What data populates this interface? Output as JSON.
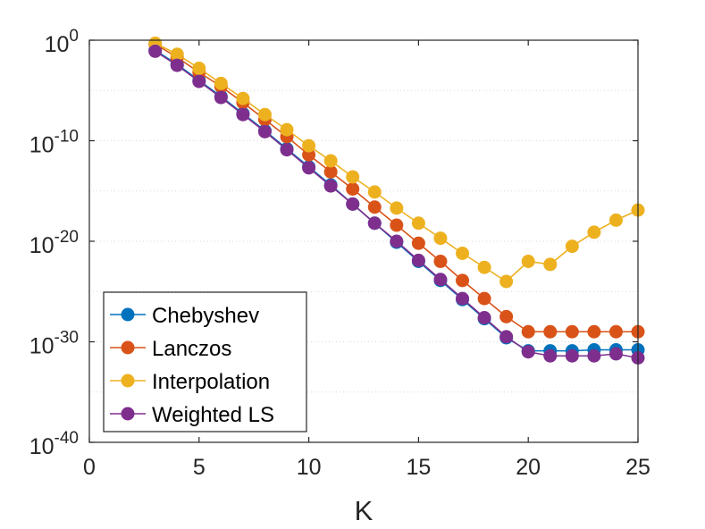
{
  "chart_data": {
    "type": "line",
    "title": "",
    "xlabel": "K",
    "ylabel": "",
    "xlim": [
      0,
      25
    ],
    "ylim_exponent": [
      -40,
      0
    ],
    "yscale": "log",
    "grid": "horizontal dotted",
    "legend_position": "bottom-left",
    "x_ticks": [
      "0",
      "5",
      "10",
      "15",
      "20",
      "25"
    ],
    "y_tick_base": "10",
    "y_tick_exponents": [
      "0",
      "-10",
      "-20",
      "-30",
      "-40"
    ],
    "x": [
      3,
      4,
      5,
      6,
      7,
      8,
      9,
      10,
      11,
      12,
      13,
      14,
      15,
      16,
      17,
      18,
      19,
      20,
      21,
      22,
      23,
      24,
      25
    ],
    "series": [
      {
        "name": "Chebyshev",
        "color": "#0072BD",
        "log10_values": [
          -1.0,
          -2.4,
          -4.0,
          -5.6,
          -7.3,
          -9.0,
          -10.8,
          -12.6,
          -14.4,
          -16.3,
          -18.2,
          -20.1,
          -22.0,
          -23.9,
          -25.8,
          -27.7,
          -29.6,
          -30.9,
          -30.9,
          -30.9,
          -30.8,
          -30.8,
          -30.8
        ]
      },
      {
        "name": "Lanczos",
        "color": "#D95319",
        "log10_values": [
          -0.4,
          -1.7,
          -3.2,
          -4.6,
          -6.2,
          -7.9,
          -9.6,
          -11.4,
          -13.1,
          -14.8,
          -16.6,
          -18.4,
          -20.2,
          -22.0,
          -23.9,
          -25.7,
          -27.5,
          -29.0,
          -29.0,
          -29.0,
          -29.0,
          -29.0,
          -29.0
        ]
      },
      {
        "name": "Interpolation",
        "color": "#EDB120",
        "log10_values": [
          -0.3,
          -1.4,
          -2.8,
          -4.3,
          -5.8,
          -7.4,
          -8.9,
          -10.5,
          -12.0,
          -13.6,
          -15.1,
          -16.7,
          -18.2,
          -19.7,
          -21.2,
          -22.6,
          -24.0,
          -22.0,
          -22.3,
          -20.5,
          -19.1,
          -17.9,
          -16.9
        ]
      },
      {
        "name": "Weighted LS",
        "color": "#7E2F8E",
        "log10_values": [
          -1.1,
          -2.5,
          -4.1,
          -5.7,
          -7.4,
          -9.1,
          -10.9,
          -12.7,
          -14.5,
          -16.3,
          -18.2,
          -20.0,
          -21.9,
          -23.8,
          -25.7,
          -27.6,
          -29.5,
          -31.0,
          -31.4,
          -31.4,
          -31.4,
          -31.2,
          -31.6
        ]
      }
    ]
  }
}
